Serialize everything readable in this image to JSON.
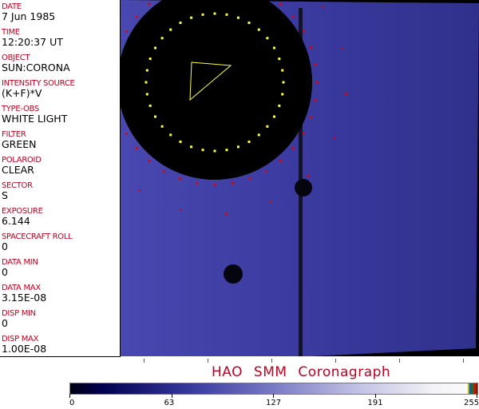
{
  "header_fields": [
    {
      "label": "DATE",
      "value": "7 Jun 1985"
    },
    {
      "label": "TIME",
      "value": "12:20:37 UT"
    },
    {
      "label": "OBJECT",
      "value": "SUN:CORONA"
    },
    {
      "label": "INTENSITY SOURCE",
      "value": "(K+F)*V"
    },
    {
      "label": "TYPE-OBS",
      "value": "WHITE LIGHT"
    },
    {
      "label": "FILTER",
      "value": "GREEN"
    },
    {
      "label": "POLAROID",
      "value": "CLEAR"
    },
    {
      "label": "SECTOR",
      "value": "S"
    },
    {
      "label": "EXPOSURE",
      "value": "6.144"
    },
    {
      "label": "SPACECRAFT ROLL",
      "value": "0"
    },
    {
      "label": "DATA MIN",
      "value": "0"
    },
    {
      "label": "DATA MAX",
      "value": "3.15E-08"
    },
    {
      "label": "DISP MIN",
      "value": "0"
    },
    {
      "label": "DISP MAX",
      "value": "1.00E-08"
    }
  ],
  "title": "HAO SMM Coronagraph",
  "colorbar": {
    "ticks": [
      "0",
      "63",
      "127",
      "191",
      "255"
    ]
  },
  "colors": {
    "label": "#c00020",
    "field": "#3a3aa8",
    "overlay_red": "#e00000",
    "overlay_yellow": "#ffff40"
  }
}
